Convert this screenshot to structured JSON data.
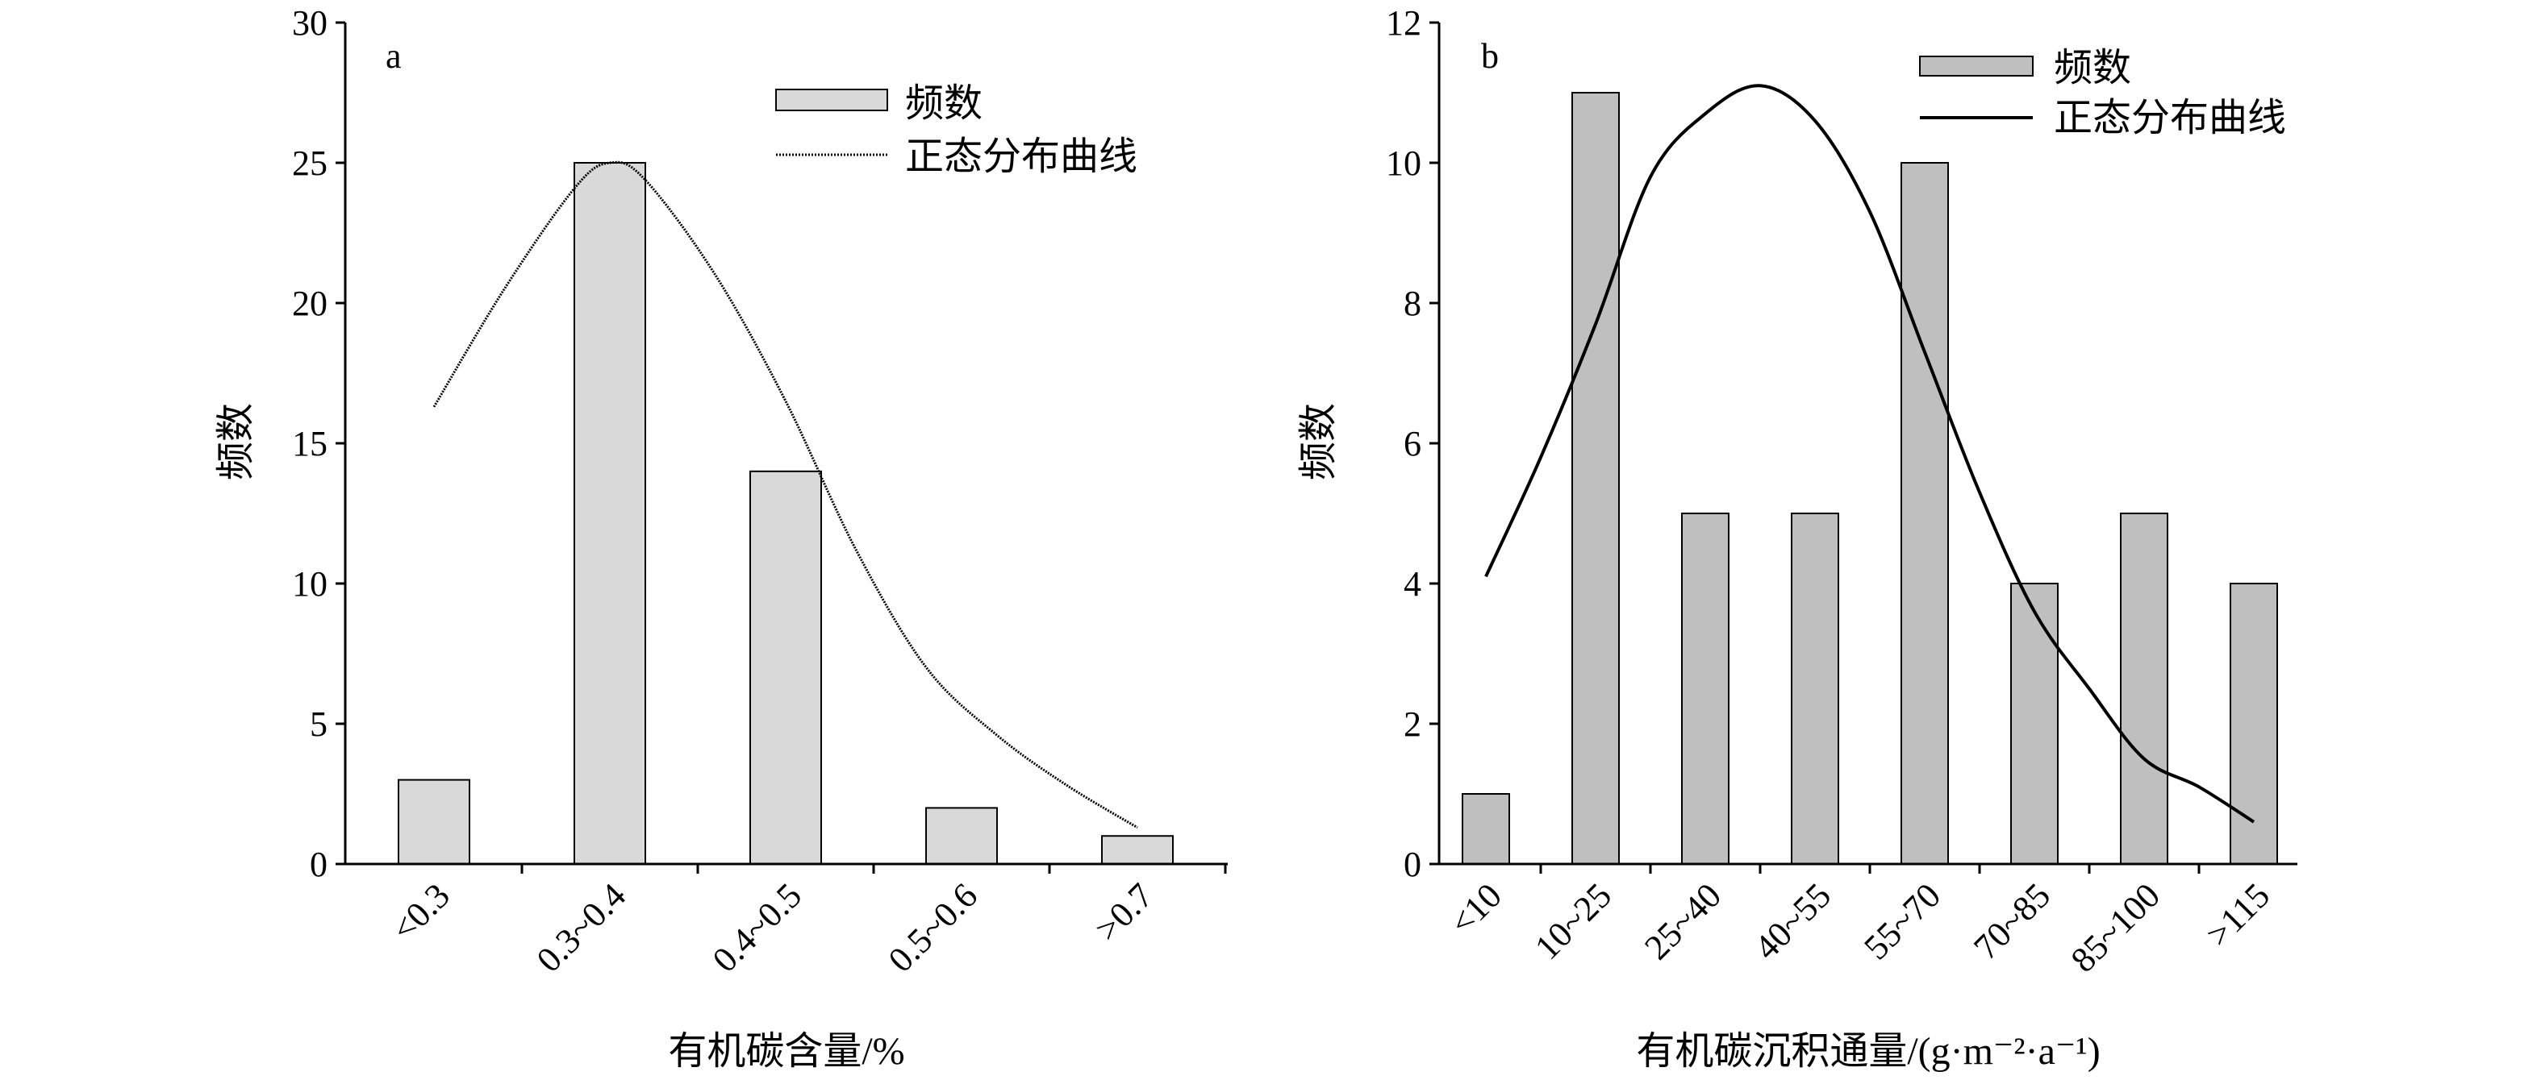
{
  "figure": {
    "background": "#ffffff",
    "ink": "#000000"
  },
  "chart_data": [
    {
      "type": "bar",
      "panel_label": "a",
      "categories": [
        "<0.3",
        "0.3~0.4",
        "0.4~0.5",
        "0.5~0.6",
        ">0.7"
      ],
      "series": [
        {
          "name": "频数",
          "values": [
            3,
            25,
            14,
            2,
            1
          ],
          "color": "#d9d9d9"
        }
      ],
      "curve": {
        "name": "正态分布曲线",
        "style": "dotted-line",
        "x": [
          0.0,
          0.4,
          0.8,
          1.0,
          1.2,
          1.6,
          2.0,
          2.4,
          2.8,
          3.2,
          3.6,
          4.0
        ],
        "y": [
          16.3,
          20.5,
          24.1,
          25.0,
          24.4,
          21.0,
          16.5,
          11.2,
          7.0,
          4.6,
          2.8,
          1.3
        ]
      },
      "xlabel": "有机碳含量/%",
      "ylabel": "频数",
      "ylim": [
        0,
        30
      ],
      "yticks": [
        0,
        5,
        10,
        15,
        20,
        25,
        30
      ],
      "legend": {
        "placement": "top-right",
        "bar_label": "频数",
        "line_label": "正态分布曲线"
      },
      "grid": false
    },
    {
      "type": "bar",
      "panel_label": "b",
      "categories": [
        "<10",
        "10~25",
        "25~40",
        "40~55",
        "55~70",
        "70~85",
        "85~100",
        ">115"
      ],
      "series": [
        {
          "name": "频数",
          "values": [
            1,
            11,
            5,
            5,
            10,
            4,
            5,
            4
          ],
          "color": "#bfbfbf"
        }
      ],
      "curve": {
        "name": "正态分布曲线",
        "style": "solid-line",
        "x": [
          0.0,
          0.5,
          1.0,
          1.5,
          2.0,
          2.5,
          3.0,
          3.5,
          4.0,
          4.5,
          5.0,
          5.5,
          6.0,
          6.5,
          7.0
        ],
        "y": [
          4.1,
          5.8,
          7.7,
          9.8,
          10.7,
          11.1,
          10.6,
          9.3,
          7.3,
          5.3,
          3.6,
          2.5,
          1.5,
          1.1,
          0.6
        ]
      },
      "curve_end_index": 7.0,
      "xlabel": "有机碳沉积通量/(g·m⁻²·a⁻¹)",
      "ylabel": "频数",
      "ylim": [
        0,
        12
      ],
      "yticks": [
        0,
        2,
        4,
        6,
        8,
        10,
        12
      ],
      "legend": {
        "placement": "top-right",
        "bar_label": "频数",
        "line_label": "正态分布曲线"
      },
      "grid": false
    }
  ]
}
